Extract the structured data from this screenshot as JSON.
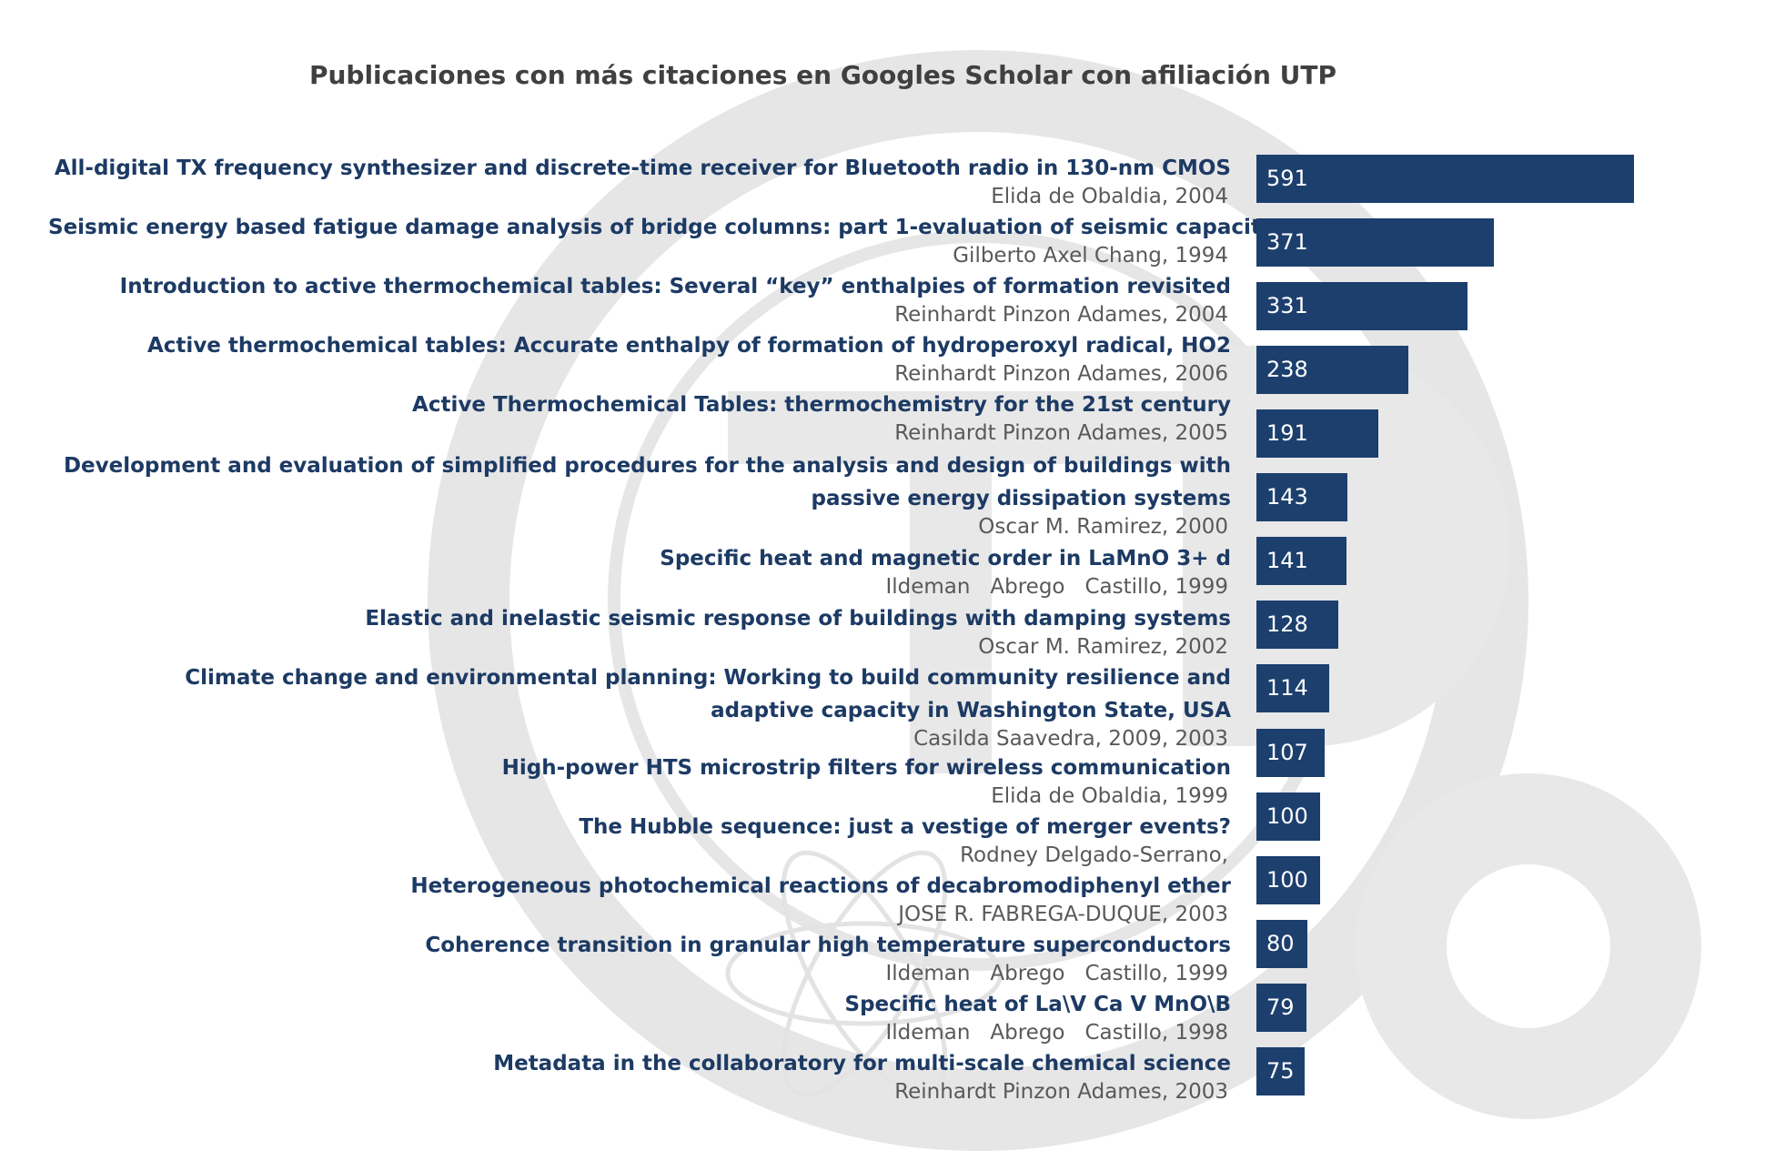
{
  "chart_data": {
    "type": "bar",
    "orientation": "horizontal",
    "title": "Publicaciones con más citaciones en Googles Scholar con afiliación UTP",
    "categories": [
      {
        "title": [
          "All-digital TX frequency synthesizer and discrete-time receiver for Bluetooth radio in 130-nm CMOS"
        ],
        "author": "Elida de Obaldia, 2004"
      },
      {
        "title": [
          "Seismic energy based fatigue damage analysis of bridge columns: part 1-evaluation of seismic capacity"
        ],
        "author": "Gilberto Axel Chang, 1994"
      },
      {
        "title": [
          "Introduction to active thermochemical tables: Several “key” enthalpies of formation revisited"
        ],
        "author": "Reinhardt Pinzon Adames, 2004"
      },
      {
        "title": [
          "Active thermochemical tables: Accurate enthalpy of formation of hydroperoxyl radical, HO2"
        ],
        "author": "Reinhardt Pinzon Adames, 2006"
      },
      {
        "title": [
          "Active Thermochemical Tables: thermochemistry for the 21st century"
        ],
        "author": "Reinhardt Pinzon Adames, 2005"
      },
      {
        "title": [
          "Development and evaluation of simplified procedures for the analysis and design of buildings with",
          "passive energy dissipation systems"
        ],
        "author": "Oscar M. Ramirez, 2000"
      },
      {
        "title": [
          "Specific heat and magnetic order in LaMnO 3+ d"
        ],
        "author": "Ildeman   Abrego   Castillo, 1999"
      },
      {
        "title": [
          "Elastic and inelastic seismic response of buildings with damping systems"
        ],
        "author": "Oscar M. Ramirez, 2002"
      },
      {
        "title": [
          "Climate change and environmental planning: Working to build community resilience and ",
          "adaptive capacity in Washington State, USA"
        ],
        "author": "Casilda Saavedra, 2009, 2003"
      },
      {
        "title": [
          "High-power HTS microstrip filters for wireless communication"
        ],
        "author": "Elida de Obaldia, 1999"
      },
      {
        "title": [
          "The Hubble sequence: just a vestige of merger events?"
        ],
        "author": "Rodney Delgado-Serrano,"
      },
      {
        "title": [
          "Heterogeneous photochemical reactions of decabromodiphenyl ether"
        ],
        "author": "JOSE R. FABREGA-DUQUE, 2003"
      },
      {
        "title": [
          "Coherence transition in granular high temperature superconductors"
        ],
        "author": "Ildeman   Abrego   Castillo, 1999"
      },
      {
        "title": [
          "Specific heat of La\\V Ca V MnO\\B"
        ],
        "author": "Ildeman   Abrego   Castillo, 1998"
      },
      {
        "title": [
          "Metadata in the collaboratory for multi-scale chemical science"
        ],
        "author": "Reinhardt Pinzon Adames, 2003"
      }
    ],
    "values": [
      591,
      371,
      331,
      238,
      191,
      143,
      141,
      128,
      114,
      107,
      100,
      100,
      80,
      79,
      75
    ],
    "xlim": [
      0,
      591
    ],
    "bar_color": "#1c3f6e",
    "title_color": "#1c3a64",
    "author_color": "#595959",
    "data_labels": "inside-left",
    "legend": "none",
    "grid": false
  }
}
